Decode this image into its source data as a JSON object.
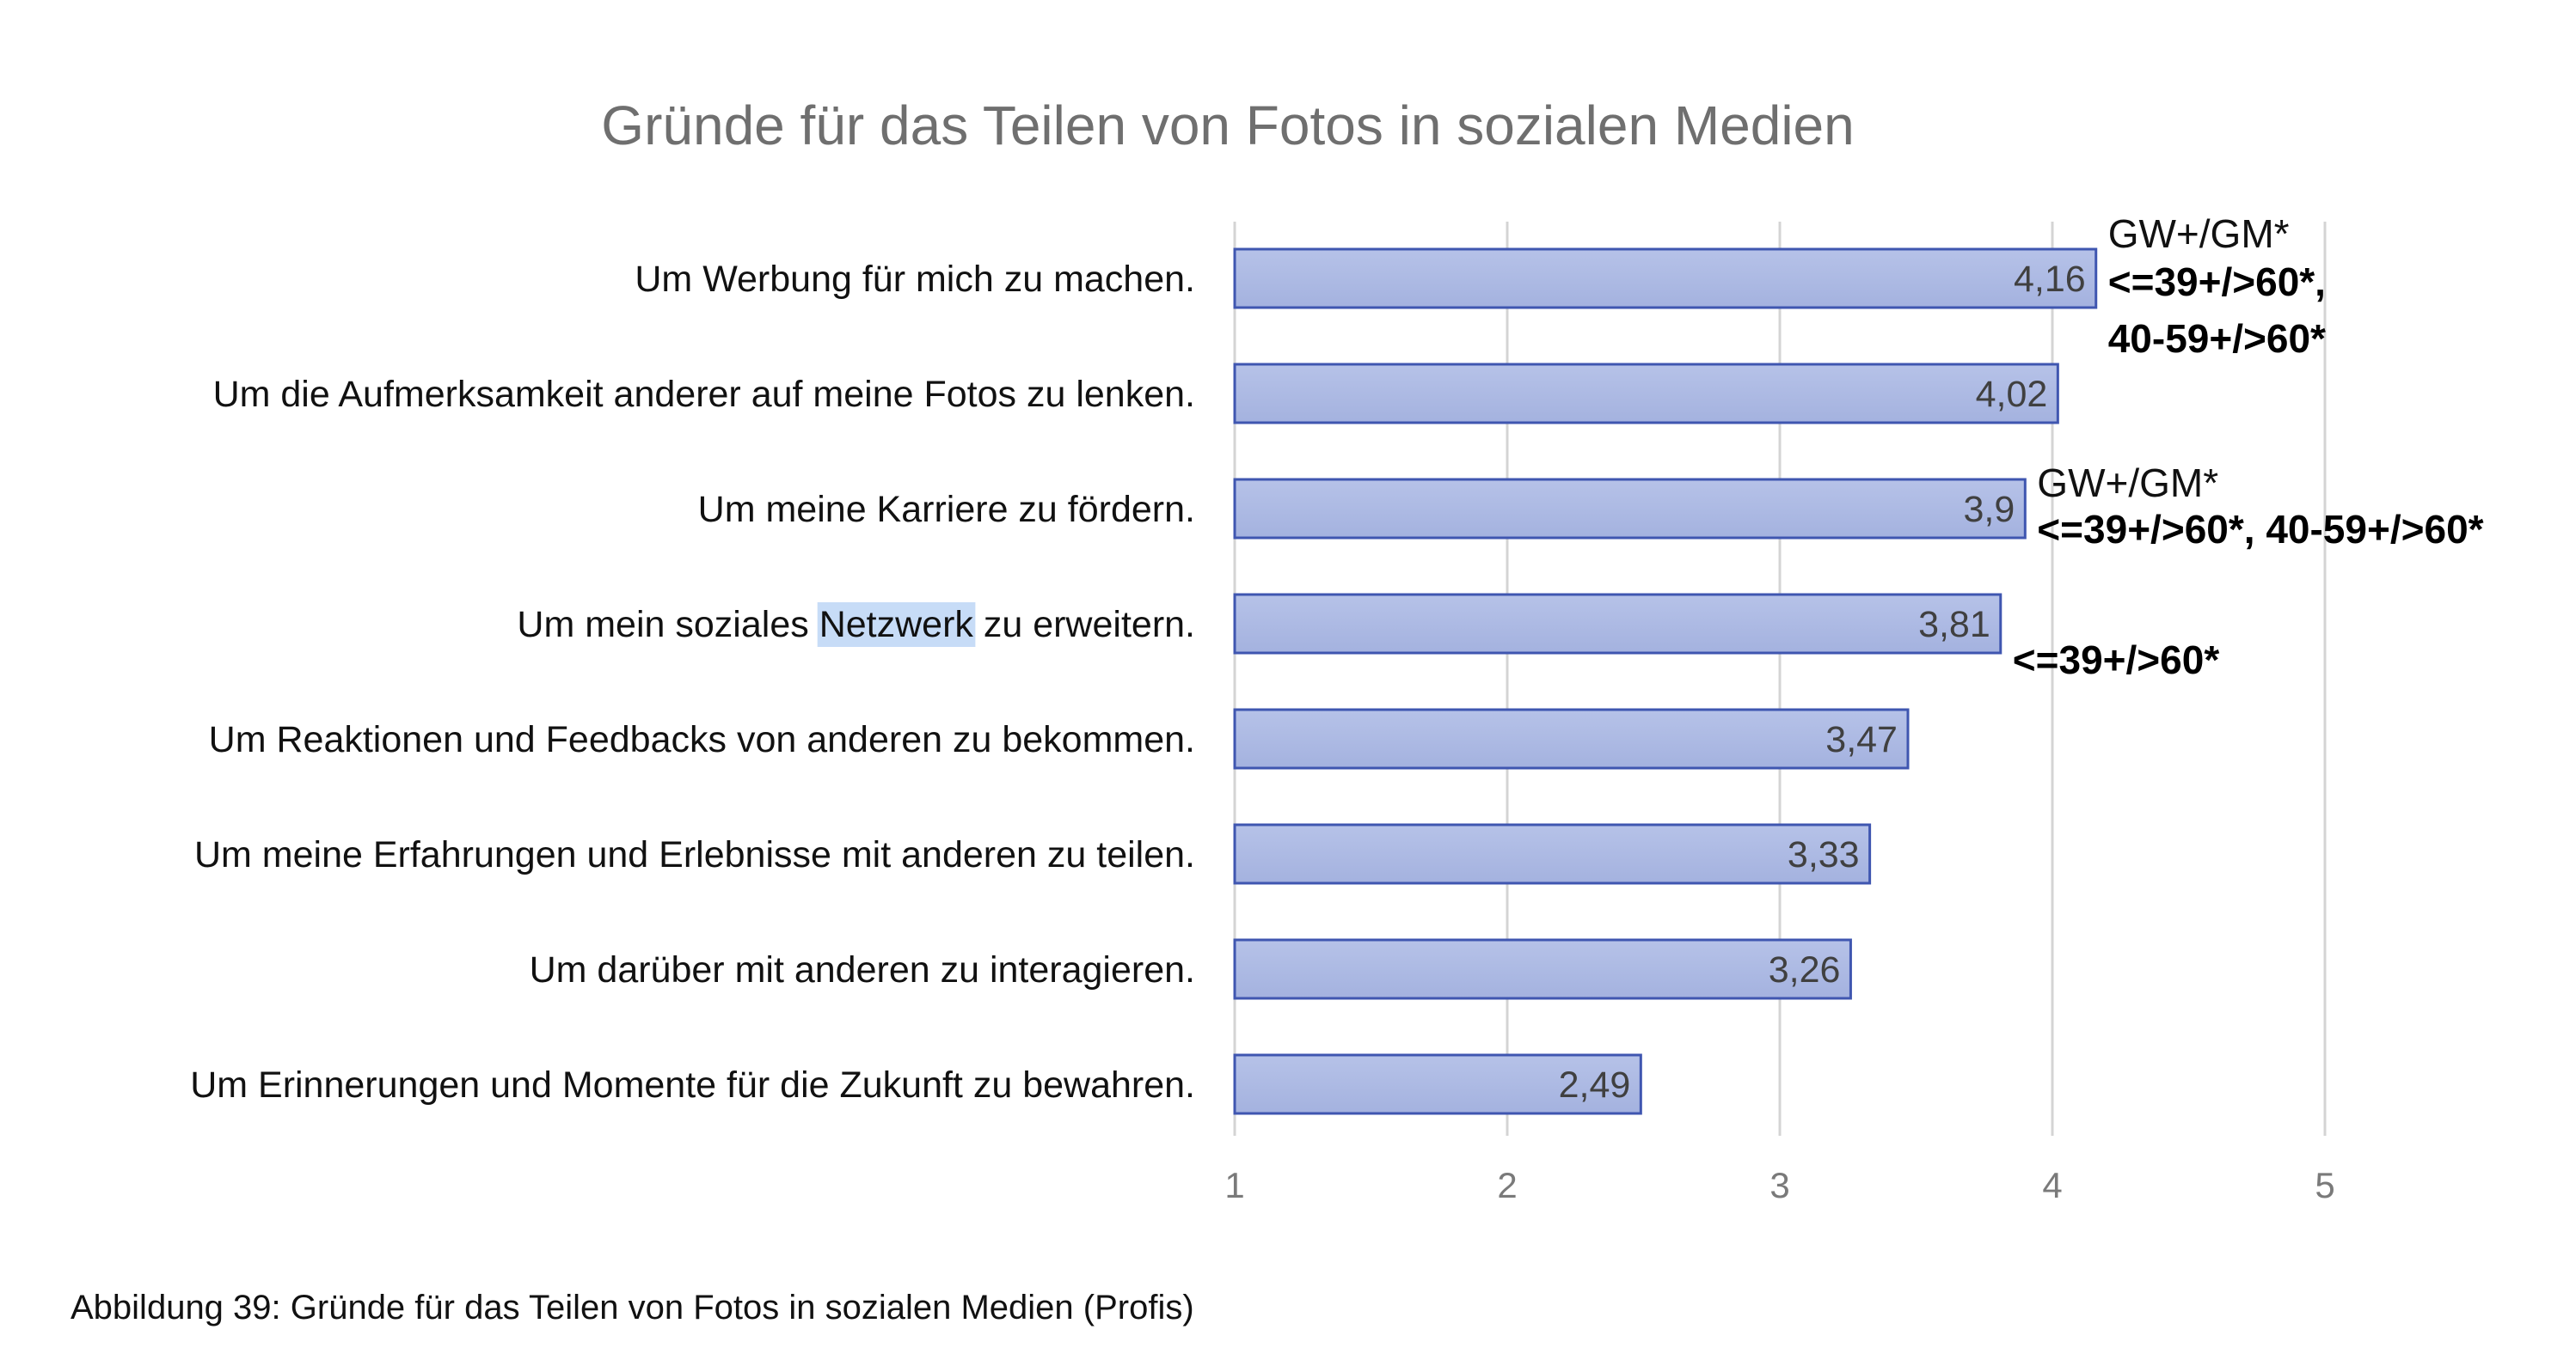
{
  "chart_data": {
    "type": "bar",
    "orientation": "horizontal",
    "title": "Gründe für das Teilen von Fotos in sozialen Medien",
    "categories": [
      "Um Werbung für mich zu machen.",
      "Um die Aufmerksamkeit anderer auf meine Fotos zu lenken.",
      "Um meine Karriere zu fördern.",
      "Um mein soziales Netzwerk zu erweitern.",
      "Um Reaktionen und Feedbacks von anderen zu bekommen.",
      "Um meine Erfahrungen und Erlebnisse mit anderen zu teilen.",
      "Um darüber mit anderen zu interagieren.",
      "Um Erinnerungen und Momente für die Zukunft zu bewahren."
    ],
    "values": [
      4.16,
      4.02,
      3.9,
      3.81,
      3.47,
      3.33,
      3.26,
      2.49
    ],
    "value_labels": [
      "4,16",
      "4,02",
      "3,9",
      "3,81",
      "3,47",
      "3,33",
      "3,26",
      "2,49"
    ],
    "xlim": [
      1,
      5
    ],
    "xticks": [
      "1",
      "2",
      "3",
      "4",
      "5"
    ],
    "xlabel": "",
    "ylabel": "",
    "grid": true,
    "bar_color": "#a4b2df",
    "bar_border_color": "#3f56b0",
    "highlighted_word": "Netzwerk",
    "annotations": [
      {
        "bar": 0,
        "lines": [
          {
            "text": "GW+/GM*",
            "bold": false
          },
          {
            "text": "<=39+/>60*,",
            "bold": true
          },
          {
            "text": "40-59+/>60*",
            "bold": true
          }
        ]
      },
      {
        "bar": 2,
        "lines": [
          {
            "text": "GW+/GM*",
            "bold": false
          },
          {
            "text": "<=39+/>60*, 40-59+/>60*",
            "bold": true
          }
        ]
      },
      {
        "bar": 3,
        "lines": [
          {
            "text": "<=39+/>60*",
            "bold": true
          }
        ]
      }
    ]
  },
  "caption": "Abbildung 39: Gründe für das Teilen von Fotos in sozialen Medien (Profis)"
}
